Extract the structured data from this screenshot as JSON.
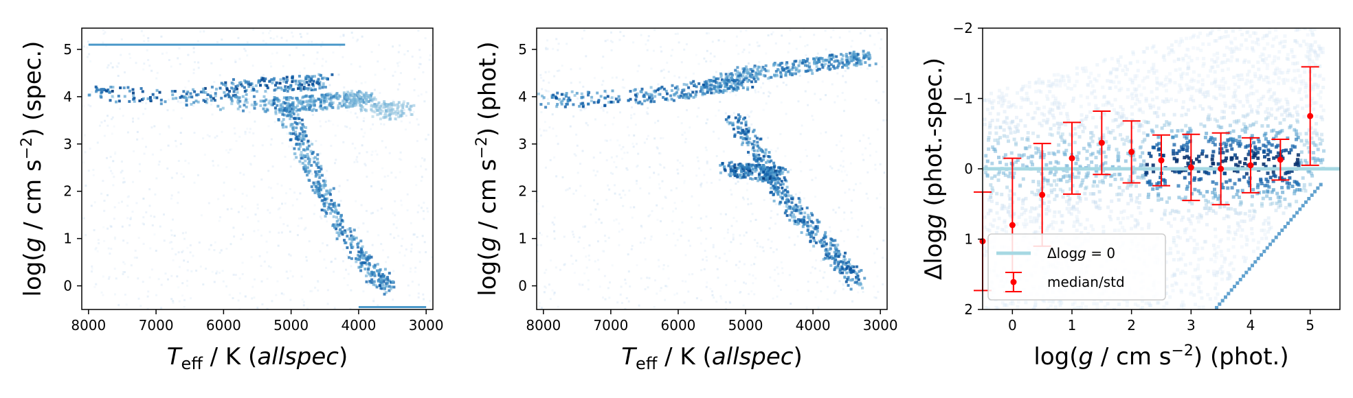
{
  "chart_data": [
    {
      "type": "heatmap",
      "title": "",
      "xlabel": "T_eff / K (allspec)",
      "ylabel": "log(g / cm s^-2) (spec.)",
      "xlim": [
        8100,
        2900
      ],
      "ylim": [
        5.45,
        -0.5
      ],
      "x_ticks": [
        8000,
        7000,
        6000,
        5000,
        4000,
        3000
      ],
      "y_ticks": [
        0,
        1,
        2,
        3,
        4,
        5
      ],
      "colormap": "Blues",
      "density_ridges": [
        {
          "x": [
            8000,
            6500,
            5700,
            5000,
            4500
          ],
          "y": [
            4.1,
            4.0,
            4.25,
            4.3,
            4.35
          ],
          "strength": 1.0
        },
        {
          "x": [
            6000,
            5000,
            4700,
            4300,
            3900
          ],
          "y": [
            3.9,
            3.85,
            3.9,
            3.95,
            4.0
          ],
          "strength": 0.7
        },
        {
          "x": [
            5200,
            5000,
            4800,
            4600,
            4400,
            4100,
            3800,
            3600
          ],
          "y": [
            3.9,
            3.5,
            2.8,
            2.2,
            1.6,
            0.9,
            0.3,
            0.0
          ],
          "strength": 0.85
        },
        {
          "x": [
            4200,
            3900,
            3600,
            3300
          ],
          "y": [
            4.0,
            3.9,
            3.7,
            3.8
          ],
          "strength": 0.35
        }
      ],
      "artifact_lines": [
        {
          "from": [
            8000,
            5.1
          ],
          "to": [
            4200,
            5.1
          ]
        },
        {
          "from": [
            4000,
            -0.45
          ],
          "to": [
            3000,
            -0.45
          ]
        }
      ]
    },
    {
      "type": "heatmap",
      "title": "",
      "xlabel": "T_eff / K (allspec)",
      "ylabel": "log(g / cm s^-2) (phot.)",
      "xlim": [
        8100,
        2900
      ],
      "ylim": [
        5.45,
        -0.5
      ],
      "x_ticks": [
        8000,
        7000,
        6000,
        5000,
        4000,
        3000
      ],
      "y_ticks": [
        0,
        1,
        2,
        3,
        4,
        5
      ],
      "colormap": "Blues",
      "density_ridges": [
        {
          "x": [
            8000,
            7000,
            6000,
            5500,
            5000
          ],
          "y": [
            3.95,
            4.0,
            4.1,
            4.25,
            4.35
          ],
          "strength": 0.9
        },
        {
          "x": [
            5500,
            5000,
            4500,
            4000,
            3500,
            3200
          ],
          "y": [
            4.3,
            4.5,
            4.6,
            4.7,
            4.8,
            4.85
          ],
          "strength": 0.8
        },
        {
          "x": [
            5200,
            4900,
            4700,
            4500,
            4200,
            3900,
            3600,
            3350
          ],
          "y": [
            3.6,
            3.0,
            2.5,
            2.0,
            1.5,
            1.0,
            0.5,
            0.1
          ],
          "strength": 0.9
        },
        {
          "x": [
            5300,
            5000,
            4700,
            4500
          ],
          "y": [
            2.5,
            2.45,
            2.4,
            2.4
          ],
          "strength": 1.0
        }
      ]
    },
    {
      "type": "heatmap",
      "title": "",
      "xlabel": "log(g / cm s^-2) (phot.)",
      "ylabel": "Δlog g (phot.-spec.)",
      "xlim": [
        -0.5,
        5.5
      ],
      "ylim": [
        -2,
        2
      ],
      "x_ticks": [
        0,
        1,
        2,
        3,
        4,
        5
      ],
      "y_ticks": [
        -2,
        -1,
        0,
        1,
        2
      ],
      "colormap": "Blues",
      "reference_line": {
        "name": "Δlogg = 0",
        "y": 0,
        "color": "#a6d8e3"
      },
      "series": [
        {
          "name": "median/std",
          "color": "#ff0000",
          "x": [
            -0.5,
            0.0,
            0.5,
            1.0,
            1.5,
            2.0,
            2.5,
            3.0,
            3.5,
            4.0,
            4.5,
            5.0
          ],
          "y": [
            1.03,
            0.8,
            0.37,
            -0.15,
            -0.37,
            -0.24,
            -0.12,
            -0.02,
            0.0,
            -0.05,
            -0.13,
            -0.75
          ],
          "err": [
            0.7,
            0.95,
            0.73,
            0.51,
            0.45,
            0.44,
            0.36,
            0.47,
            0.51,
            0.39,
            0.29,
            0.7
          ]
        }
      ],
      "legend": {
        "location": "lower-left",
        "entries": [
          "Δlogg = 0",
          "median/std"
        ]
      }
    }
  ]
}
